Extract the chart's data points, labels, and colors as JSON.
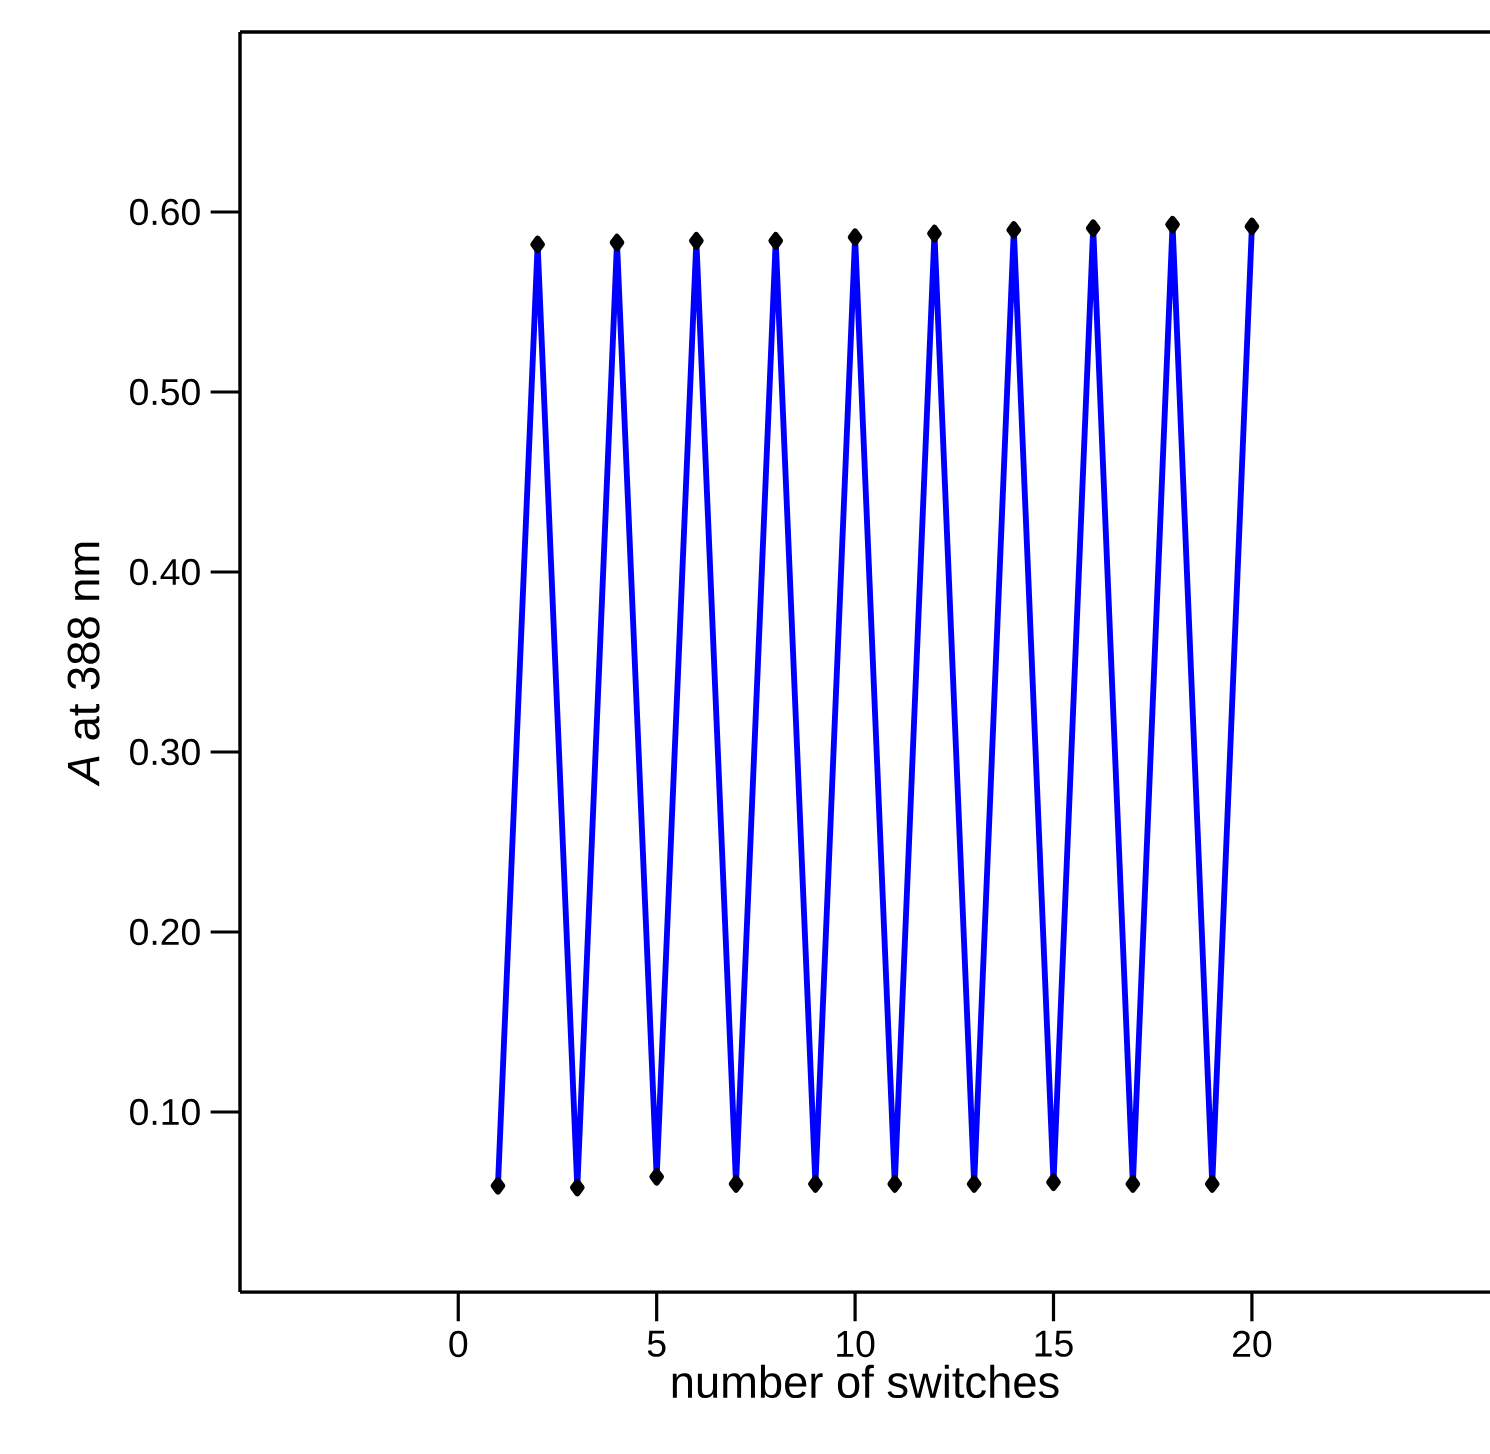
{
  "chart_data": {
    "type": "line",
    "xlabel": "number of switches",
    "ylabel": "*A* at 388 nm",
    "x": [
      1,
      2,
      3,
      4,
      5,
      6,
      7,
      8,
      9,
      10,
      11,
      12,
      13,
      14,
      15,
      16,
      17,
      18,
      19,
      20
    ],
    "series": [
      {
        "color": "#0000ff",
        "values": [
          0.059,
          0.582,
          0.058,
          0.583,
          0.064,
          0.584,
          0.06,
          0.584,
          0.06,
          0.586,
          0.06,
          0.588,
          0.06,
          0.59,
          0.061,
          0.591,
          0.06,
          0.593,
          0.06,
          0.592
        ]
      }
    ],
    "xlim": [
      -5.5,
      26
    ],
    "ylim": [
      0,
      0.7
    ],
    "xticks": [
      0,
      5,
      10,
      15,
      20
    ],
    "yticks": [
      {
        "value": 0.1,
        "label": "0.10"
      },
      {
        "value": 0.2,
        "label": "0.20"
      },
      {
        "value": 0.3,
        "label": "0.30"
      },
      {
        "value": 0.4,
        "label": "0.40"
      },
      {
        "value": 0.5,
        "label": "0.50"
      },
      {
        "value": 0.6,
        "label": "0.60"
      }
    ],
    "marker": "diamond",
    "line_style": "solid"
  }
}
